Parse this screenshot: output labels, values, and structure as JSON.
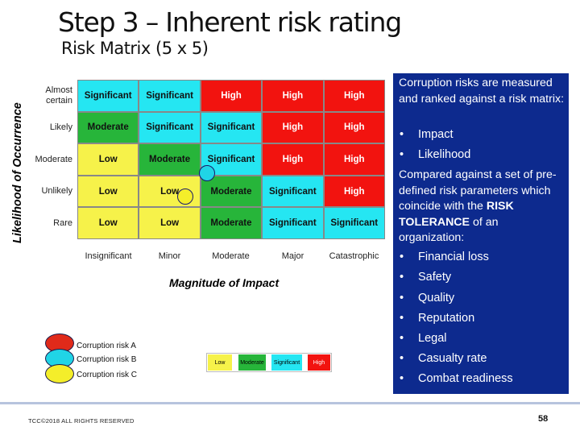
{
  "title": "Step 3 – Inherent risk rating",
  "subtitle": "Risk Matrix (5 x 5)",
  "matrix": {
    "y_axis_label": "Likelihood of Occurrence",
    "x_axis_label": "Magnitude of Impact",
    "rows": [
      "Almost certain",
      "Likely",
      "Moderate",
      "Unlikely",
      "Rare"
    ],
    "columns": [
      "Insignificant",
      "Minor",
      "Moderate",
      "Major",
      "Catastrophic"
    ],
    "cells": [
      [
        "Significant",
        "Significant",
        "High",
        "High",
        "High"
      ],
      [
        "Moderate",
        "Significant",
        "Significant",
        "High",
        "High"
      ],
      [
        "Low",
        "Moderate",
        "Significant",
        "High",
        "High"
      ],
      [
        "Low",
        "Low",
        "Moderate",
        "Significant",
        "High"
      ],
      [
        "Low",
        "Low",
        "Moderate",
        "Significant",
        "Significant"
      ]
    ],
    "colors": {
      "Low": "#f6f24a",
      "Moderate": "#27b53a",
      "Significant": "#25e6f2",
      "High": "#f2130f"
    }
  },
  "risks": [
    {
      "label": "Corruption risk A",
      "color": "#e02a1a"
    },
    {
      "label": "Corruption risk B",
      "color": "#20d4e6"
    },
    {
      "label": "Corruption risk C",
      "color": "#f4ee2a"
    }
  ],
  "mini_legend": [
    "Low",
    "Moderate",
    "Significant",
    "High"
  ],
  "panel": {
    "intro": "Corruption risks are measured and ranked against a risk matrix:",
    "bullets1": [
      "Impact",
      "Likelihood"
    ],
    "middle_before": "Compared against a set of pre-defined risk parameters which coincide with the ",
    "middle_bold": "RISK TOLERANCE",
    "middle_after": " of an organization:",
    "bullets2": [
      "Financial loss",
      "Safety",
      "Quality",
      "Reputation",
      "Legal",
      "Casualty rate",
      "Combat readiness"
    ]
  },
  "footer": "TCC©2018 ALL RIGHTS RESERVED",
  "page_number": "58"
}
